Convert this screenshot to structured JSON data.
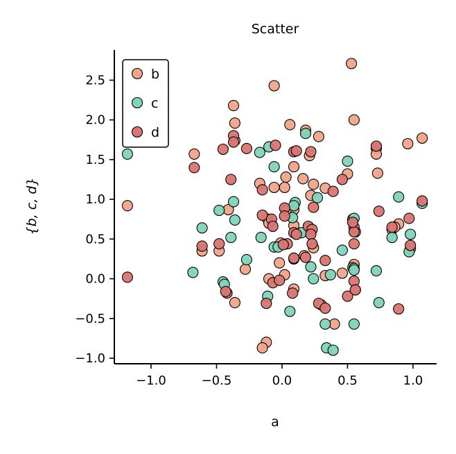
{
  "chart_data": {
    "type": "scatter",
    "title": "Scatter",
    "xlabel": "a",
    "ylabel": "{b, c, d}",
    "xlim": [
      -1.28,
      1.18
    ],
    "ylim": [
      -1.07,
      2.88
    ],
    "xticks": [
      -1.0,
      -0.5,
      0.0,
      0.5,
      1.0
    ],
    "xtick_labels": [
      "−1.0",
      "−0.5",
      "0.0",
      "0.5",
      "1.0"
    ],
    "yticks": [
      -1.0,
      -0.5,
      0.0,
      0.5,
      1.0,
      1.5,
      2.0,
      2.5
    ],
    "ytick_labels": [
      "−1.0",
      "−0.5",
      "0.0",
      "0.5",
      "1.0",
      "1.5",
      "2.0",
      "2.5"
    ],
    "grid": false,
    "legend_position": "top-left",
    "series": [
      {
        "name": "b",
        "color": "#f0a58a",
        "points": [
          [
            0.53,
            2.71
          ],
          [
            -0.06,
            2.43
          ],
          [
            -0.37,
            2.18
          ],
          [
            0.55,
            2.0
          ],
          [
            -0.36,
            1.96
          ],
          [
            0.06,
            1.94
          ],
          [
            0.18,
            1.87
          ],
          [
            0.28,
            1.79
          ],
          [
            1.07,
            1.77
          ],
          [
            -0.36,
            1.74
          ],
          [
            0.96,
            1.7
          ],
          [
            0.72,
            1.64
          ],
          [
            -0.67,
            1.57
          ],
          [
            0.72,
            1.57
          ],
          [
            0.21,
            1.55
          ],
          [
            0.09,
            1.41
          ],
          [
            0.73,
            1.33
          ],
          [
            0.5,
            1.32
          ],
          [
            0.03,
            1.28
          ],
          [
            0.16,
            1.26
          ],
          [
            -0.17,
            1.2
          ],
          [
            0.24,
            1.19
          ],
          [
            -0.06,
            1.15
          ],
          [
            0.33,
            1.14
          ],
          [
            0.02,
            1.15
          ],
          [
            0.22,
            1.05
          ],
          [
            -0.41,
            0.87
          ],
          [
            -1.18,
            0.92
          ],
          [
            0.09,
            0.87
          ],
          [
            0.03,
            0.86
          ],
          [
            -0.11,
            0.75
          ],
          [
            0.09,
            0.67
          ],
          [
            -0.1,
            0.7
          ],
          [
            0.56,
            0.59
          ],
          [
            0.84,
            0.62
          ],
          [
            0.89,
            0.69
          ],
          [
            0.21,
            0.64
          ],
          [
            -0.01,
            0.45
          ],
          [
            0.24,
            0.39
          ],
          [
            -0.61,
            0.35
          ],
          [
            -0.48,
            0.35
          ],
          [
            0.17,
            0.29
          ],
          [
            0.55,
            0.18
          ],
          [
            -0.28,
            0.12
          ],
          [
            -0.02,
            0.2
          ],
          [
            0.98,
            0.38
          ],
          [
            0.02,
            0.05
          ],
          [
            0.46,
            0.07
          ],
          [
            0.33,
            0.04
          ],
          [
            -0.1,
            0.0
          ],
          [
            0.56,
            -0.14
          ],
          [
            0.09,
            -0.13
          ],
          [
            -0.36,
            -0.3
          ],
          [
            0.3,
            -0.33
          ],
          [
            0.86,
            0.65
          ],
          [
            0.54,
            0.14
          ],
          [
            0.4,
            -0.57
          ],
          [
            -0.12,
            -0.8
          ],
          [
            -0.15,
            -0.87
          ]
        ]
      },
      {
        "name": "c",
        "color": "#7fd4b9",
        "points": [
          [
            -1.18,
            1.57
          ],
          [
            -0.17,
            1.59
          ],
          [
            -0.1,
            1.66
          ],
          [
            0.18,
            1.83
          ],
          [
            0.5,
            1.48
          ],
          [
            -0.06,
            1.41
          ],
          [
            0.27,
            1.02
          ],
          [
            0.1,
            0.96
          ],
          [
            0.09,
            0.92
          ],
          [
            0.89,
            1.03
          ],
          [
            1.07,
            0.95
          ],
          [
            -0.37,
            0.97
          ],
          [
            -0.48,
            0.86
          ],
          [
            0.08,
            0.77
          ],
          [
            0.54,
            0.75
          ],
          [
            -0.36,
            0.74
          ],
          [
            -0.61,
            0.64
          ],
          [
            0.15,
            0.58
          ],
          [
            0.98,
            0.56
          ],
          [
            0.84,
            0.52
          ],
          [
            -0.16,
            0.52
          ],
          [
            -0.39,
            0.52
          ],
          [
            -0.06,
            0.4
          ],
          [
            -0.03,
            0.4
          ],
          [
            0.46,
            0.36
          ],
          [
            0.97,
            0.34
          ],
          [
            0.55,
            0.13
          ],
          [
            0.22,
            0.15
          ],
          [
            -0.27,
            0.24
          ],
          [
            0.09,
            0.25
          ],
          [
            0.55,
            0.11
          ],
          [
            -0.68,
            0.08
          ],
          [
            0.72,
            0.1
          ],
          [
            -0.45,
            -0.04
          ],
          [
            0.24,
            0.0
          ],
          [
            0.37,
            0.05
          ],
          [
            -0.44,
            -0.07
          ],
          [
            -0.11,
            -0.22
          ],
          [
            0.74,
            -0.3
          ],
          [
            0.06,
            -0.41
          ],
          [
            0.55,
            -0.57
          ],
          [
            0.33,
            -0.57
          ],
          [
            0.34,
            -0.87
          ],
          [
            0.39,
            -0.9
          ],
          [
            0.55,
            0.76
          ]
        ]
      },
      {
        "name": "d",
        "color": "#d97572",
        "points": [
          [
            -0.37,
            1.8
          ],
          [
            -0.45,
            1.63
          ],
          [
            -0.27,
            1.64
          ],
          [
            -0.37,
            1.72
          ],
          [
            -0.05,
            1.68
          ],
          [
            0.72,
            1.67
          ],
          [
            0.09,
            1.6
          ],
          [
            0.11,
            1.61
          ],
          [
            0.22,
            1.6
          ],
          [
            -0.67,
            1.4
          ],
          [
            -0.39,
            1.25
          ],
          [
            0.46,
            1.25
          ],
          [
            -0.15,
            1.12
          ],
          [
            0.39,
            1.1
          ],
          [
            1.07,
            0.98
          ],
          [
            0.24,
            0.9
          ],
          [
            0.02,
            0.89
          ],
          [
            0.74,
            0.85
          ],
          [
            -0.15,
            0.8
          ],
          [
            -0.08,
            0.75
          ],
          [
            0.97,
            0.76
          ],
          [
            0.55,
            0.65
          ],
          [
            0.02,
            0.79
          ],
          [
            0.84,
            0.65
          ],
          [
            0.2,
            0.66
          ],
          [
            0.09,
            0.58
          ],
          [
            -0.07,
            0.66
          ],
          [
            0.11,
            0.56
          ],
          [
            0.23,
            0.62
          ],
          [
            0.55,
            0.59
          ],
          [
            0.54,
            0.71
          ],
          [
            0.22,
            0.56
          ],
          [
            0.04,
            0.44
          ],
          [
            0.01,
            0.43
          ],
          [
            -0.48,
            0.44
          ],
          [
            -0.61,
            0.41
          ],
          [
            0.55,
            0.44
          ],
          [
            0.23,
            0.44
          ],
          [
            0.98,
            0.42
          ],
          [
            0.33,
            0.23
          ],
          [
            0.18,
            0.27
          ],
          [
            0.09,
            0.26
          ],
          [
            -1.18,
            0.02
          ],
          [
            -0.07,
            -0.05
          ],
          [
            0.55,
            -0.03
          ],
          [
            -0.02,
            -0.02
          ],
          [
            -0.42,
            -0.18
          ],
          [
            0.08,
            -0.18
          ],
          [
            0.5,
            -0.22
          ],
          [
            0.28,
            -0.31
          ],
          [
            -0.12,
            -0.31
          ],
          [
            0.33,
            -0.37
          ],
          [
            0.89,
            -0.38
          ],
          [
            -0.43,
            -0.16
          ],
          [
            0.56,
            -0.14
          ]
        ]
      }
    ]
  }
}
